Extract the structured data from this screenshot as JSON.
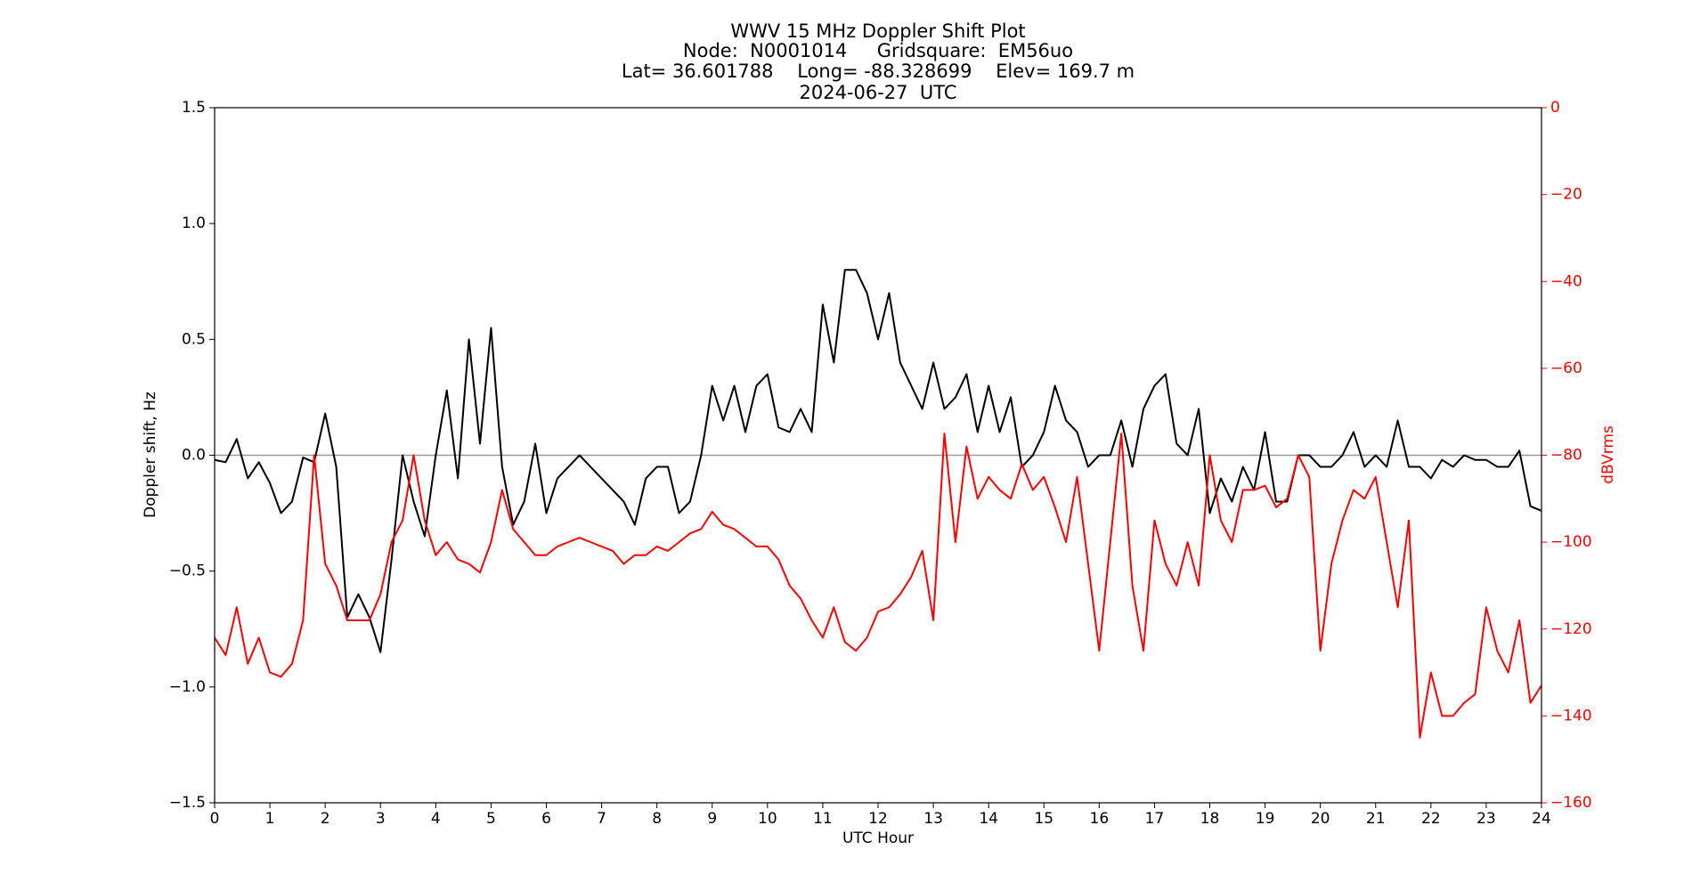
{
  "chart_data": {
    "type": "line",
    "title": "WWV 15 MHz Doppler Shift Plot",
    "subtitle": [
      "Node:  N0001014     Gridsquare:  EM56uo",
      "Lat= 36.601788    Long= -88.328699    Elev= 169.7 m",
      "2024-06-27  UTC"
    ],
    "xlabel": "UTC Hour",
    "ylabel": "Doppler shift, Hz",
    "y2label": "dBVrms",
    "y2color": "#ff0000",
    "axhline": 0,
    "axhline_color": "#999999",
    "x": [
      0,
      0.2,
      0.4,
      0.6,
      0.8,
      1,
      1.2,
      1.4,
      1.6,
      1.8,
      2,
      2.2,
      2.4,
      2.6,
      2.8,
      3,
      3.2,
      3.4,
      3.6,
      3.8,
      4,
      4.2,
      4.4,
      4.6,
      4.8,
      5,
      5.2,
      5.4,
      5.6,
      5.8,
      6,
      6.2,
      6.4,
      6.6,
      6.8,
      7,
      7.2,
      7.4,
      7.6,
      7.8,
      8,
      8.2,
      8.4,
      8.6,
      8.8,
      9,
      9.2,
      9.4,
      9.6,
      9.8,
      10,
      10.2,
      10.4,
      10.6,
      10.8,
      11,
      11.2,
      11.4,
      11.6,
      11.8,
      12,
      12.2,
      12.4,
      12.6,
      12.8,
      13,
      13.2,
      13.4,
      13.6,
      13.8,
      14,
      14.2,
      14.4,
      14.6,
      14.8,
      15,
      15.2,
      15.4,
      15.6,
      15.8,
      16,
      16.2,
      16.4,
      16.6,
      16.8,
      17,
      17.2,
      17.4,
      17.6,
      17.8,
      18,
      18.2,
      18.4,
      18.6,
      18.8,
      19,
      19.2,
      19.4,
      19.6,
      19.8,
      20,
      20.2,
      20.4,
      20.6,
      20.8,
      21,
      21.2,
      21.4,
      21.6,
      21.8,
      22,
      22.2,
      22.4,
      22.6,
      22.8,
      23,
      23.2,
      23.4,
      23.6,
      23.8,
      24
    ],
    "series": [
      {
        "name": "Doppler shift, Hz",
        "color": "#000000",
        "values": [
          -0.02,
          -0.03,
          0.07,
          -0.1,
          -0.03,
          -0.12,
          -0.25,
          -0.2,
          -0.01,
          -0.03,
          0.18,
          -0.05,
          -0.7,
          -0.6,
          -0.7,
          -0.85,
          -0.45,
          0.0,
          -0.2,
          -0.35,
          0.0,
          0.28,
          -0.1,
          0.5,
          0.05,
          0.55,
          -0.05,
          -0.3,
          -0.2,
          0.05,
          -0.25,
          -0.1,
          -0.05,
          0.0,
          -0.05,
          -0.1,
          -0.15,
          -0.2,
          -0.3,
          -0.1,
          -0.05,
          -0.05,
          -0.25,
          -0.2,
          0.0,
          0.3,
          0.15,
          0.3,
          0.1,
          0.3,
          0.35,
          0.12,
          0.1,
          0.2,
          0.1,
          0.65,
          0.4,
          0.8,
          0.8,
          0.7,
          0.5,
          0.7,
          0.4,
          0.3,
          0.2,
          0.4,
          0.2,
          0.25,
          0.35,
          0.1,
          0.3,
          0.1,
          0.25,
          -0.05,
          0.0,
          0.1,
          0.3,
          0.15,
          0.1,
          -0.05,
          0.0,
          0.0,
          0.15,
          -0.05,
          0.2,
          0.3,
          0.35,
          0.05,
          0.0,
          0.2,
          -0.25,
          -0.1,
          -0.2,
          -0.05,
          -0.15,
          0.1,
          -0.2,
          -0.2,
          0.0,
          0.0,
          -0.05,
          -0.05,
          0.0,
          0.1,
          -0.05,
          0.0,
          -0.05,
          0.15,
          -0.05,
          -0.05,
          -0.1,
          -0.02,
          -0.05,
          0.0,
          -0.02,
          -0.02,
          -0.05,
          -0.05,
          0.02,
          -0.22,
          -0.24
        ]
      },
      {
        "name": "dBVrms",
        "color": "#ff0000",
        "axis": "y2",
        "values": [
          -122,
          -126,
          -115,
          -128,
          -122,
          -130,
          -131,
          -128,
          -118,
          -80,
          -105,
          -110,
          -118,
          -118,
          -118,
          -112,
          -100,
          -95,
          -80,
          -95,
          -103,
          -100,
          -104,
          -105,
          -107,
          -100,
          -88,
          -97,
          -100,
          -103,
          -103,
          -101,
          -100,
          -99,
          -100,
          -101,
          -102,
          -105,
          -103,
          -103,
          -101,
          -102,
          -100,
          -98,
          -97,
          -93,
          -96,
          -97,
          -99,
          -101,
          -101,
          -104,
          -110,
          -113,
          -118,
          -122,
          -115,
          -123,
          -125,
          -122,
          -116,
          -115,
          -112,
          -108,
          -102,
          -118,
          -75,
          -100,
          -78,
          -90,
          -85,
          -88,
          -90,
          -82,
          -88,
          -85,
          -92,
          -100,
          -85,
          -105,
          -125,
          -100,
          -75,
          -110,
          -125,
          -95,
          -105,
          -110,
          -100,
          -110,
          -80,
          -95,
          -100,
          -88,
          -88,
          -87,
          -92,
          -90,
          -80,
          -85,
          -125,
          -105,
          -95,
          -88,
          -90,
          -85,
          -100,
          -115,
          -95,
          -145,
          -130,
          -140,
          -140,
          -137,
          -135,
          -115,
          -125,
          -130,
          -118,
          -137,
          -133
        ]
      }
    ],
    "xlim": [
      0,
      24
    ],
    "xticks": [
      0,
      1,
      2,
      3,
      4,
      5,
      6,
      7,
      8,
      9,
      10,
      11,
      12,
      13,
      14,
      15,
      16,
      17,
      18,
      19,
      20,
      21,
      22,
      23,
      24
    ],
    "ylim": [
      -1.5,
      1.5
    ],
    "yticks": [
      {
        "value": -1.5,
        "label": "−1.5"
      },
      {
        "value": -1.0,
        "label": "−1.0"
      },
      {
        "value": -0.5,
        "label": "−0.5"
      },
      {
        "value": 0.0,
        "label": "0.0"
      },
      0.5,
      {
        "value": 1.0,
        "label": "1.0"
      },
      1.5
    ],
    "y2lim": [
      -160,
      0
    ],
    "y2ticks": [
      {
        "value": -160,
        "label": "−160"
      },
      {
        "value": -140,
        "label": "−140"
      },
      {
        "value": -120,
        "label": "−120"
      },
      {
        "value": -100,
        "label": "−100"
      },
      {
        "value": -80,
        "label": "−80"
      },
      {
        "value": -60,
        "label": "−60"
      },
      {
        "value": -40,
        "label": "−40"
      },
      {
        "value": -20,
        "label": "−20"
      },
      0
    ]
  }
}
